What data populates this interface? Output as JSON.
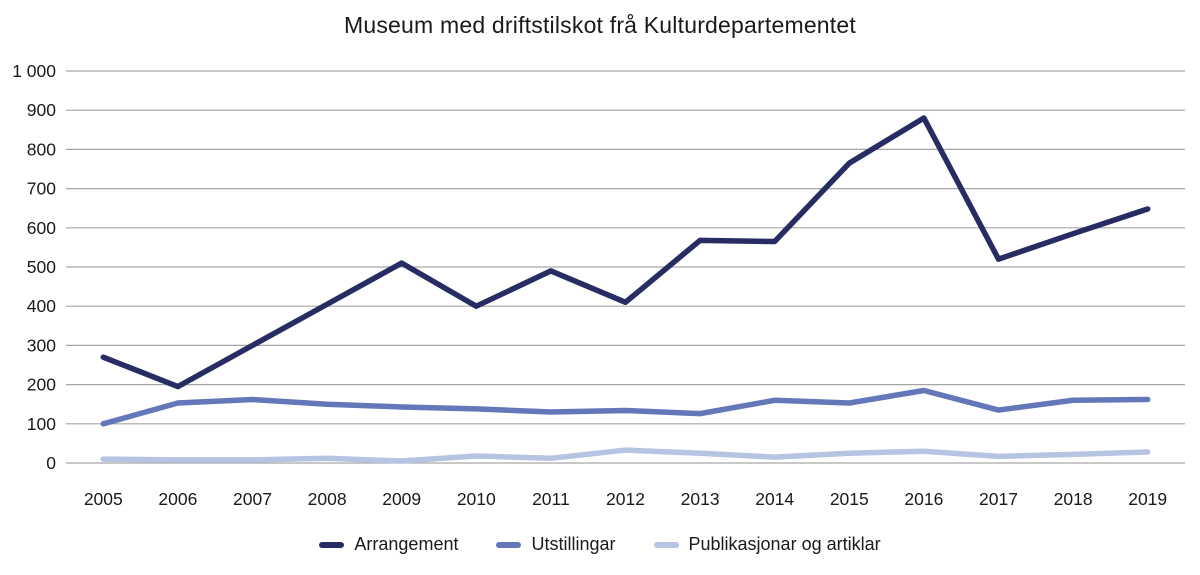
{
  "title": "Museum med driftstilskot frå Kulturdepartementet",
  "chart_data": {
    "type": "line",
    "title": "Museum med driftstilskot frå Kulturdepartementet",
    "categories": [
      "2005",
      "2006",
      "2007",
      "2008",
      "2009",
      "2010",
      "2011",
      "2012",
      "2013",
      "2014",
      "2015",
      "2016",
      "2017",
      "2018",
      "2019"
    ],
    "series": [
      {
        "name": "Arrangement",
        "color": "#272c63",
        "values": [
          270,
          195,
          300,
          405,
          510,
          400,
          490,
          410,
          568,
          565,
          765,
          880,
          520,
          585,
          648
        ]
      },
      {
        "name": "Utstillingar",
        "color": "#6377b9",
        "values": [
          100,
          153,
          162,
          150,
          143,
          138,
          130,
          134,
          126,
          160,
          153,
          185,
          135,
          160,
          162
        ]
      },
      {
        "name": "Publikasjonar og artiklar",
        "color": "#b7c3e3",
        "values": [
          10,
          8,
          8,
          12,
          5,
          18,
          12,
          33,
          25,
          15,
          25,
          30,
          17,
          22,
          28
        ]
      }
    ],
    "ylim": [
      0,
      1000
    ],
    "ytick_step": 100,
    "ytick_labels": [
      "0",
      "100",
      "200",
      "300",
      "400",
      "500",
      "600",
      "700",
      "800",
      "900",
      "1 000"
    ],
    "xlabel": "",
    "ylabel": "",
    "grid": "horizontal-only",
    "legend_position": "bottom-center"
  },
  "colors": {
    "background": "#ffffff",
    "gridline": "#a6a6a6",
    "axis_text": "#1a1a1a",
    "title_text": "#1a1a1a"
  }
}
